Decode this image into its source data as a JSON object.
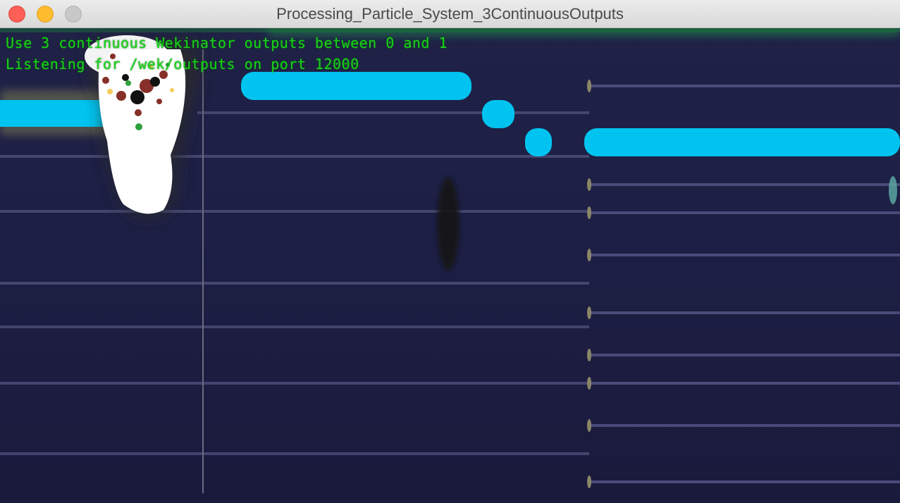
{
  "window": {
    "title": "Processing_Particle_System_3ContinuousOutputs",
    "buttons": [
      "close",
      "minimize",
      "zoom"
    ]
  },
  "overlay": {
    "line1": "Use 3 continuous Wekinator outputs between 0 and 1",
    "line2": "Listening for /wek/outputs on port 12000"
  },
  "colors": {
    "overlay_text": "#18d418",
    "note_bar": "#00c4ef",
    "staff_line": "#4b4d77",
    "background": "#1d1f45",
    "close": "#fe5f57",
    "minimize": "#febc2e",
    "zoom": "#c8c8c8"
  }
}
